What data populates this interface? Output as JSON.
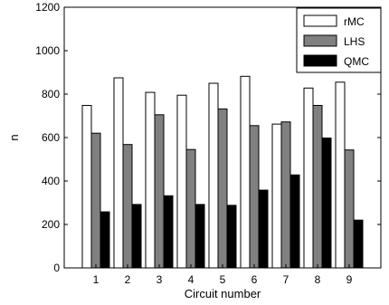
{
  "chart_data": {
    "type": "bar",
    "categories": [
      "1",
      "2",
      "3",
      "4",
      "5",
      "6",
      "7",
      "8",
      "9"
    ],
    "series": [
      {
        "name": "rMC",
        "values": [
          748,
          875,
          808,
          795,
          850,
          882,
          662,
          828,
          855
        ],
        "color": "#ffffff"
      },
      {
        "name": "LHS",
        "values": [
          620,
          568,
          705,
          545,
          732,
          655,
          672,
          748,
          543
        ],
        "color": "#808080"
      },
      {
        "name": "QMC",
        "values": [
          258,
          292,
          332,
          292,
          288,
          358,
          428,
          598,
          220
        ],
        "color": "#000000"
      }
    ],
    "xlabel": "Circuit number",
    "ylabel": "n",
    "ylim": [
      0,
      1200
    ],
    "yticks": [
      0,
      200,
      400,
      600,
      800,
      1000,
      1200
    ],
    "grid": false,
    "legend_position": "top-right"
  }
}
